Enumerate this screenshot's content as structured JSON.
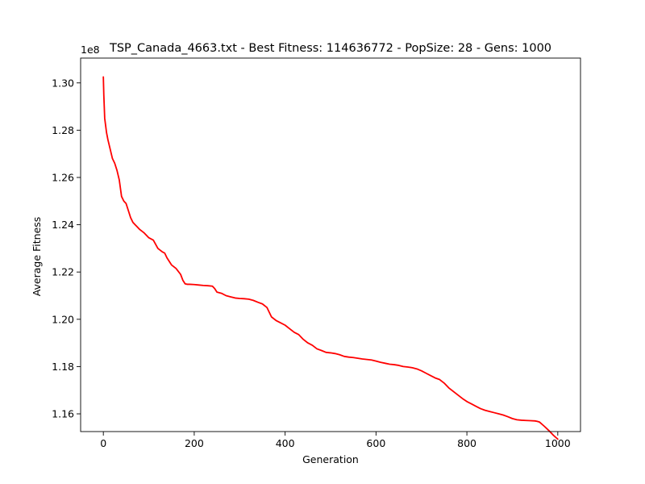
{
  "chart_data": {
    "type": "line",
    "title": "TSP_Canada_4663.txt - Best Fitness: 114636772 - PopSize: 28 - Gens: 1000",
    "xlabel": "Generation",
    "ylabel": "Average Fitness",
    "scale_note": "1e8",
    "xlim": [
      -50,
      1050
    ],
    "ylim": [
      1.1525,
      1.3105
    ],
    "xticks": [
      0,
      200,
      400,
      600,
      800,
      1000
    ],
    "xtick_labels": [
      "0",
      "200",
      "400",
      "600",
      "800",
      "1000"
    ],
    "yticks": [
      1.16,
      1.18,
      1.2,
      1.22,
      1.24,
      1.26,
      1.28,
      1.3
    ],
    "ytick_labels": [
      "1.16",
      "1.18",
      "1.20",
      "1.22",
      "1.24",
      "1.26",
      "1.28",
      "1.30"
    ],
    "grid": false,
    "color": "#ff0000",
    "series": [
      {
        "x": [
          0,
          1,
          2,
          3,
          5,
          7,
          10,
          15,
          20,
          25,
          30,
          35,
          40,
          45,
          50,
          55,
          60,
          65,
          70,
          75,
          80,
          90,
          100,
          110,
          120,
          130,
          135,
          140,
          150,
          160,
          170,
          175,
          180,
          185,
          190,
          200,
          210,
          220,
          230,
          240,
          245,
          250,
          260,
          270,
          280,
          290,
          300,
          310,
          320,
          330,
          340,
          350,
          360,
          370,
          380,
          390,
          400,
          410,
          420,
          430,
          440,
          450,
          460,
          470,
          480,
          490,
          500,
          510,
          520,
          530,
          540,
          550,
          560,
          570,
          580,
          590,
          600,
          610,
          620,
          630,
          640,
          650,
          660,
          670,
          680,
          690,
          700,
          710,
          720,
          730,
          740,
          750,
          760,
          770,
          780,
          790,
          800,
          810,
          820,
          830,
          840,
          850,
          860,
          870,
          880,
          890,
          900,
          910,
          920,
          930,
          940,
          950,
          955,
          960,
          970,
          980,
          990,
          1000
        ],
        "y": [
          1.3025,
          1.295,
          1.29,
          1.285,
          1.282,
          1.279,
          1.276,
          1.272,
          1.268,
          1.266,
          1.263,
          1.259,
          1.252,
          1.25,
          1.249,
          1.246,
          1.243,
          1.241,
          1.24,
          1.239,
          1.238,
          1.2365,
          1.2345,
          1.2335,
          1.23,
          1.2285,
          1.228,
          1.226,
          1.223,
          1.2215,
          1.219,
          1.2165,
          1.215,
          1.2148,
          1.2148,
          1.2147,
          1.2145,
          1.2143,
          1.2142,
          1.214,
          1.213,
          1.2115,
          1.211,
          1.21,
          1.2095,
          1.209,
          1.2088,
          1.2087,
          1.2085,
          1.208,
          1.2072,
          1.2065,
          1.205,
          1.201,
          1.1995,
          1.1985,
          1.1975,
          1.196,
          1.1945,
          1.1935,
          1.1915,
          1.19,
          1.189,
          1.1875,
          1.1868,
          1.186,
          1.1858,
          1.1855,
          1.185,
          1.1843,
          1.184,
          1.1838,
          1.1835,
          1.1832,
          1.183,
          1.1828,
          1.1823,
          1.1818,
          1.1814,
          1.181,
          1.1808,
          1.1805,
          1.18,
          1.1798,
          1.1795,
          1.179,
          1.1782,
          1.1772,
          1.1762,
          1.1752,
          1.1745,
          1.173,
          1.171,
          1.1695,
          1.168,
          1.1665,
          1.1652,
          1.1642,
          1.1632,
          1.1622,
          1.1615,
          1.161,
          1.1605,
          1.16,
          1.1595,
          1.1588,
          1.158,
          1.1575,
          1.1573,
          1.1572,
          1.1571,
          1.157,
          1.1568,
          1.1565,
          1.1548,
          1.153,
          1.151,
          1.1493
        ]
      }
    ]
  }
}
